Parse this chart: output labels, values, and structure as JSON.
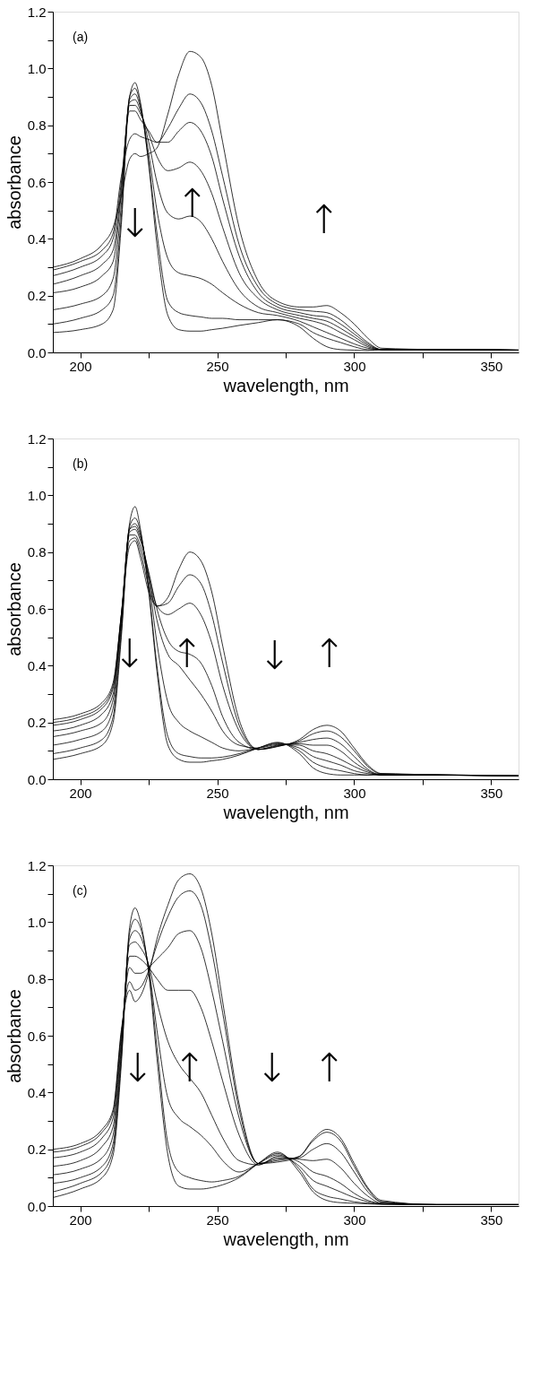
{
  "chart_data": [
    {
      "type": "line",
      "title": "(a)",
      "xlabel": "wavelength, nm",
      "ylabel": "absorbance",
      "xlim": [
        190,
        360
      ],
      "ylim": [
        0,
        1.2
      ],
      "xticks": [
        200,
        {
          "value": 225,
          "label": null
        },
        250,
        {
          "value": 275,
          "label": null
        },
        300,
        {
          "value": 325,
          "label": null
        },
        350
      ],
      "yticks": [
        {
          "value": 0,
          "label": "0.0"
        },
        {
          "value": 0.1,
          "label": null
        },
        {
          "value": 0.2,
          "label": "0.2"
        },
        {
          "value": 0.3,
          "label": null
        },
        {
          "value": 0.4,
          "label": "0.4"
        },
        {
          "value": 0.5,
          "label": null
        },
        {
          "value": 0.6,
          "label": "0.6"
        },
        {
          "value": 0.7,
          "label": null
        },
        {
          "value": 0.8,
          "label": "0.8"
        },
        {
          "value": 0.9,
          "label": null
        },
        {
          "value": 1.0,
          "label": "1.0"
        },
        {
          "value": 1.1,
          "label": null
        },
        {
          "value": 1.2,
          "label": "1.2"
        }
      ],
      "grid": false,
      "legend": false,
      "marker": "none",
      "line_style": "solid",
      "annotations": [
        "↓",
        "↑",
        "↑"
      ],
      "x": [
        190,
        200,
        208,
        212,
        215,
        218,
        220,
        222,
        225,
        228,
        232,
        236,
        240,
        244,
        248,
        252,
        258,
        265,
        272,
        280,
        285,
        290,
        295,
        300,
        305,
        310,
        330,
        360
      ],
      "series": [
        {
          "color": "#000000",
          "values": [
            0.07,
            0.08,
            0.1,
            0.15,
            0.45,
            0.9,
            0.95,
            0.88,
            0.66,
            0.38,
            0.13,
            0.08,
            0.075,
            0.075,
            0.08,
            0.085,
            0.095,
            0.105,
            0.115,
            0.09,
            0.05,
            0.02,
            0.01,
            0.008,
            0.006,
            0.01,
            0.01,
            0.008
          ]
        },
        {
          "color": "#000000",
          "values": [
            0.1,
            0.12,
            0.15,
            0.2,
            0.48,
            0.9,
            0.93,
            0.87,
            0.67,
            0.42,
            0.18,
            0.14,
            0.13,
            0.125,
            0.12,
            0.12,
            0.115,
            0.115,
            0.115,
            0.1,
            0.07,
            0.05,
            0.035,
            0.02,
            0.01,
            0.01,
            0.01,
            0.008
          ]
        },
        {
          "color": "#000000",
          "values": [
            0.15,
            0.17,
            0.2,
            0.26,
            0.52,
            0.89,
            0.91,
            0.86,
            0.7,
            0.5,
            0.33,
            0.28,
            0.27,
            0.26,
            0.24,
            0.21,
            0.17,
            0.14,
            0.13,
            0.11,
            0.09,
            0.07,
            0.05,
            0.03,
            0.015,
            0.01,
            0.01,
            0.008
          ]
        },
        {
          "color": "#000000",
          "values": [
            0.21,
            0.23,
            0.27,
            0.32,
            0.56,
            0.88,
            0.89,
            0.85,
            0.74,
            0.6,
            0.49,
            0.47,
            0.48,
            0.46,
            0.4,
            0.32,
            0.22,
            0.16,
            0.14,
            0.12,
            0.11,
            0.095,
            0.07,
            0.045,
            0.02,
            0.01,
            0.01,
            0.008
          ]
        },
        {
          "color": "#000000",
          "values": [
            0.24,
            0.27,
            0.31,
            0.36,
            0.58,
            0.87,
            0.87,
            0.84,
            0.77,
            0.69,
            0.64,
            0.65,
            0.67,
            0.64,
            0.56,
            0.44,
            0.28,
            0.19,
            0.15,
            0.13,
            0.12,
            0.11,
            0.085,
            0.055,
            0.025,
            0.01,
            0.01,
            0.008
          ]
        },
        {
          "color": "#000000",
          "values": [
            0.27,
            0.3,
            0.34,
            0.4,
            0.6,
            0.85,
            0.85,
            0.82,
            0.78,
            0.74,
            0.74,
            0.78,
            0.81,
            0.78,
            0.69,
            0.54,
            0.34,
            0.21,
            0.16,
            0.14,
            0.13,
            0.125,
            0.1,
            0.065,
            0.03,
            0.01,
            0.01,
            0.008
          ]
        },
        {
          "color": "#000000",
          "values": [
            0.29,
            0.32,
            0.36,
            0.42,
            0.62,
            0.75,
            0.77,
            0.76,
            0.75,
            0.74,
            0.79,
            0.86,
            0.91,
            0.88,
            0.78,
            0.62,
            0.38,
            0.23,
            0.17,
            0.15,
            0.145,
            0.14,
            0.115,
            0.075,
            0.035,
            0.01,
            0.01,
            0.008
          ]
        },
        {
          "color": "#000000",
          "values": [
            0.3,
            0.33,
            0.38,
            0.44,
            0.55,
            0.68,
            0.7,
            0.69,
            0.7,
            0.72,
            0.84,
            0.98,
            1.06,
            1.04,
            0.94,
            0.74,
            0.44,
            0.25,
            0.18,
            0.16,
            0.16,
            0.165,
            0.14,
            0.1,
            0.05,
            0.015,
            0.01,
            0.008
          ]
        }
      ]
    },
    {
      "type": "line",
      "title": "(b)",
      "xlabel": "wavelength, nm",
      "ylabel": "absorbance",
      "xlim": [
        190,
        360
      ],
      "ylim": [
        0,
        1.2
      ],
      "xticks": [
        200,
        {
          "value": 225,
          "label": null
        },
        250,
        {
          "value": 275,
          "label": null
        },
        300,
        {
          "value": 325,
          "label": null
        },
        350
      ],
      "yticks": [
        {
          "value": 0,
          "label": "0.0"
        },
        {
          "value": 0.1,
          "label": null
        },
        {
          "value": 0.2,
          "label": "0.2"
        },
        {
          "value": 0.3,
          "label": null
        },
        {
          "value": 0.4,
          "label": "0.4"
        },
        {
          "value": 0.5,
          "label": null
        },
        {
          "value": 0.6,
          "label": "0.6"
        },
        {
          "value": 0.7,
          "label": null
        },
        {
          "value": 0.8,
          "label": "0.8"
        },
        {
          "value": 0.9,
          "label": null
        },
        {
          "value": 1.0,
          "label": "1.0"
        },
        {
          "value": 1.1,
          "label": null
        },
        {
          "value": 1.2,
          "label": "1.2"
        }
      ],
      "grid": false,
      "legend": false,
      "marker": "none",
      "line_style": "solid",
      "annotations": [
        "↓",
        "↑",
        "↓",
        "↑"
      ],
      "x": [
        190,
        200,
        208,
        212,
        215,
        218,
        220,
        222,
        225,
        228,
        232,
        236,
        240,
        244,
        248,
        252,
        258,
        265,
        272,
        280,
        285,
        290,
        295,
        300,
        305,
        310,
        330,
        360
      ],
      "series": [
        {
          "color": "#000000",
          "values": [
            0.07,
            0.09,
            0.12,
            0.2,
            0.5,
            0.9,
            0.96,
            0.88,
            0.66,
            0.38,
            0.12,
            0.07,
            0.06,
            0.06,
            0.065,
            0.07,
            0.085,
            0.11,
            0.13,
            0.09,
            0.04,
            0.02,
            0.015,
            0.015,
            0.015,
            0.02,
            0.015,
            0.012
          ]
        },
        {
          "color": "#000000",
          "values": [
            0.09,
            0.11,
            0.14,
            0.22,
            0.52,
            0.89,
            0.92,
            0.87,
            0.67,
            0.4,
            0.15,
            0.09,
            0.08,
            0.075,
            0.075,
            0.078,
            0.09,
            0.11,
            0.128,
            0.1,
            0.06,
            0.04,
            0.03,
            0.02,
            0.015,
            0.015,
            0.015,
            0.012
          ]
        },
        {
          "color": "#000000",
          "values": [
            0.12,
            0.14,
            0.17,
            0.25,
            0.54,
            0.88,
            0.9,
            0.86,
            0.7,
            0.48,
            0.27,
            0.2,
            0.17,
            0.15,
            0.13,
            0.11,
            0.1,
            0.11,
            0.125,
            0.11,
            0.08,
            0.065,
            0.05,
            0.03,
            0.02,
            0.015,
            0.015,
            0.012
          ]
        },
        {
          "color": "#000000",
          "values": [
            0.15,
            0.17,
            0.2,
            0.28,
            0.56,
            0.88,
            0.89,
            0.85,
            0.72,
            0.56,
            0.44,
            0.4,
            0.35,
            0.3,
            0.24,
            0.17,
            0.12,
            0.11,
            0.122,
            0.12,
            0.1,
            0.09,
            0.07,
            0.045,
            0.025,
            0.015,
            0.015,
            0.012
          ]
        },
        {
          "color": "#000000",
          "values": [
            0.17,
            0.19,
            0.23,
            0.3,
            0.57,
            0.87,
            0.88,
            0.84,
            0.73,
            0.6,
            0.49,
            0.45,
            0.44,
            0.41,
            0.33,
            0.22,
            0.13,
            0.105,
            0.12,
            0.125,
            0.12,
            0.12,
            0.1,
            0.06,
            0.03,
            0.015,
            0.015,
            0.012
          ]
        },
        {
          "color": "#000000",
          "values": [
            0.19,
            0.21,
            0.25,
            0.32,
            0.58,
            0.86,
            0.86,
            0.82,
            0.71,
            0.61,
            0.58,
            0.6,
            0.62,
            0.58,
            0.48,
            0.33,
            0.17,
            0.105,
            0.118,
            0.13,
            0.14,
            0.145,
            0.125,
            0.08,
            0.035,
            0.015,
            0.015,
            0.012
          ]
        },
        {
          "color": "#000000",
          "values": [
            0.2,
            0.22,
            0.26,
            0.33,
            0.58,
            0.84,
            0.85,
            0.8,
            0.68,
            0.61,
            0.62,
            0.68,
            0.72,
            0.69,
            0.58,
            0.41,
            0.19,
            0.105,
            0.116,
            0.135,
            0.16,
            0.17,
            0.15,
            0.1,
            0.045,
            0.018,
            0.015,
            0.012
          ]
        },
        {
          "color": "#000000",
          "values": [
            0.21,
            0.23,
            0.27,
            0.34,
            0.58,
            0.82,
            0.84,
            0.78,
            0.66,
            0.61,
            0.64,
            0.74,
            0.8,
            0.77,
            0.66,
            0.47,
            0.21,
            0.105,
            0.115,
            0.14,
            0.175,
            0.19,
            0.17,
            0.11,
            0.05,
            0.02,
            0.015,
            0.012
          ]
        }
      ]
    },
    {
      "type": "line",
      "title": "(c)",
      "xlabel": "wavelength, nm",
      "ylabel": "absorbance",
      "xlim": [
        190,
        360
      ],
      "ylim": [
        0,
        1.2
      ],
      "xticks": [
        200,
        {
          "value": 225,
          "label": null
        },
        250,
        {
          "value": 275,
          "label": null
        },
        300,
        {
          "value": 325,
          "label": null
        },
        350
      ],
      "yticks": [
        {
          "value": 0,
          "label": "0.0"
        },
        {
          "value": 0.1,
          "label": null
        },
        {
          "value": 0.2,
          "label": "0.2"
        },
        {
          "value": 0.3,
          "label": null
        },
        {
          "value": 0.4,
          "label": "0.4"
        },
        {
          "value": 0.5,
          "label": null
        },
        {
          "value": 0.6,
          "label": "0.6"
        },
        {
          "value": 0.7,
          "label": null
        },
        {
          "value": 0.8,
          "label": "0.8"
        },
        {
          "value": 0.9,
          "label": null
        },
        {
          "value": 1.0,
          "label": "1.0"
        },
        {
          "value": 1.1,
          "label": null
        },
        {
          "value": 1.2,
          "label": "1.2"
        }
      ],
      "grid": false,
      "legend": false,
      "marker": "none",
      "line_style": "solid",
      "annotations": [
        "↓",
        "↑",
        "↓",
        "↑"
      ],
      "x": [
        190,
        200,
        208,
        212,
        215,
        218,
        220,
        222,
        225,
        228,
        232,
        236,
        240,
        244,
        248,
        252,
        258,
        265,
        272,
        280,
        285,
        290,
        295,
        300,
        305,
        310,
        330,
        360
      ],
      "series": [
        {
          "color": "#000000",
          "values": [
            0.03,
            0.06,
            0.1,
            0.18,
            0.5,
            0.98,
            1.05,
            1.0,
            0.82,
            0.52,
            0.18,
            0.07,
            0.06,
            0.06,
            0.065,
            0.075,
            0.1,
            0.15,
            0.19,
            0.12,
            0.05,
            0.02,
            0.012,
            0.01,
            0.008,
            0.006,
            0.005,
            0.005
          ]
        },
        {
          "color": "#000000",
          "values": [
            0.05,
            0.08,
            0.12,
            0.2,
            0.52,
            0.96,
            1.01,
            0.98,
            0.83,
            0.56,
            0.22,
            0.12,
            0.1,
            0.09,
            0.085,
            0.09,
            0.105,
            0.15,
            0.185,
            0.13,
            0.06,
            0.035,
            0.025,
            0.015,
            0.01,
            0.007,
            0.005,
            0.005
          ]
        },
        {
          "color": "#000000",
          "values": [
            0.08,
            0.1,
            0.14,
            0.22,
            0.54,
            0.94,
            0.97,
            0.95,
            0.84,
            0.62,
            0.38,
            0.31,
            0.28,
            0.25,
            0.21,
            0.16,
            0.12,
            0.15,
            0.18,
            0.14,
            0.09,
            0.07,
            0.05,
            0.03,
            0.015,
            0.008,
            0.005,
            0.005
          ]
        },
        {
          "color": "#000000",
          "values": [
            0.11,
            0.13,
            0.17,
            0.25,
            0.56,
            0.92,
            0.93,
            0.91,
            0.85,
            0.72,
            0.58,
            0.5,
            0.45,
            0.4,
            0.32,
            0.24,
            0.16,
            0.145,
            0.175,
            0.155,
            0.12,
            0.105,
            0.08,
            0.045,
            0.02,
            0.01,
            0.005,
            0.005
          ]
        },
        {
          "color": "#000000",
          "values": [
            0.14,
            0.16,
            0.21,
            0.28,
            0.58,
            0.88,
            0.88,
            0.87,
            0.84,
            0.8,
            0.76,
            0.76,
            0.76,
            0.7,
            0.58,
            0.44,
            0.25,
            0.145,
            0.17,
            0.165,
            0.16,
            0.165,
            0.135,
            0.08,
            0.035,
            0.01,
            0.005,
            0.005
          ]
        },
        {
          "color": "#000000",
          "values": [
            0.17,
            0.19,
            0.24,
            0.31,
            0.6,
            0.84,
            0.82,
            0.82,
            0.84,
            0.87,
            0.91,
            0.96,
            0.97,
            0.91,
            0.76,
            0.58,
            0.31,
            0.15,
            0.165,
            0.17,
            0.2,
            0.22,
            0.19,
            0.12,
            0.05,
            0.015,
            0.005,
            0.005
          ]
        },
        {
          "color": "#000000",
          "values": [
            0.19,
            0.21,
            0.26,
            0.33,
            0.61,
            0.79,
            0.76,
            0.77,
            0.83,
            0.92,
            1.02,
            1.09,
            1.11,
            1.06,
            0.9,
            0.68,
            0.34,
            0.15,
            0.16,
            0.175,
            0.23,
            0.26,
            0.23,
            0.14,
            0.06,
            0.015,
            0.005,
            0.005
          ]
        },
        {
          "color": "#000000",
          "values": [
            0.2,
            0.22,
            0.27,
            0.34,
            0.62,
            0.76,
            0.72,
            0.74,
            0.82,
            0.94,
            1.06,
            1.15,
            1.17,
            1.12,
            0.96,
            0.72,
            0.36,
            0.15,
            0.155,
            0.175,
            0.235,
            0.27,
            0.24,
            0.15,
            0.065,
            0.02,
            0.005,
            0.005
          ]
        }
      ]
    }
  ]
}
